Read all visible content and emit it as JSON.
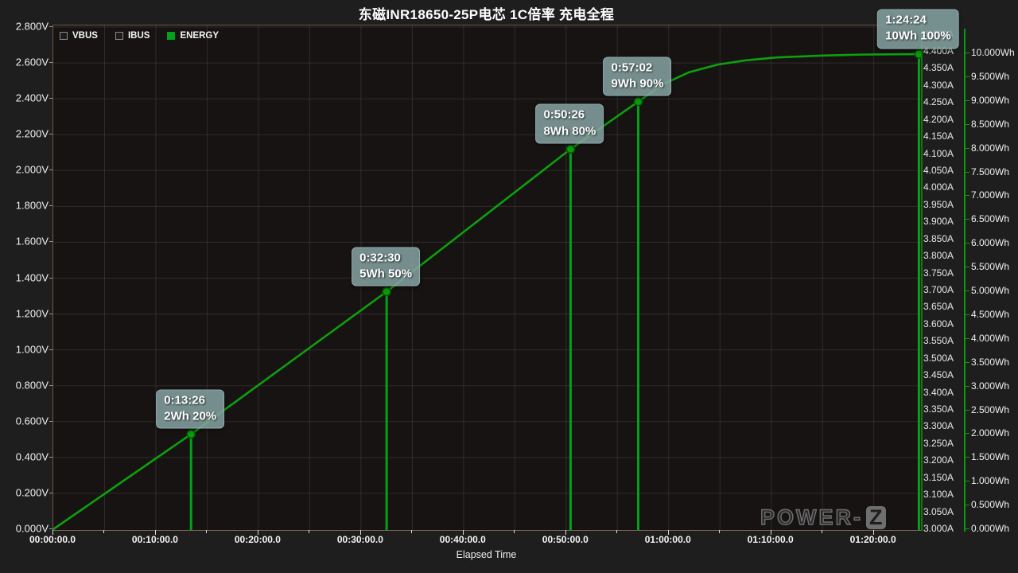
{
  "header": {
    "title": "东磁INR18650-25P电芯 1C倍率 充电全程"
  },
  "legend": {
    "items": [
      {
        "label": "VBUS",
        "checked": false,
        "swatch_color": "#1d1d1d"
      },
      {
        "label": "IBUS",
        "checked": false,
        "swatch_color": "#1d1d1d"
      },
      {
        "label": "ENERGY",
        "checked": true,
        "swatch_color": "#00a31e"
      }
    ]
  },
  "watermark": {
    "text_main": "POWER-",
    "text_z": "Z"
  },
  "colors": {
    "background": "#1f1e1e",
    "plot_background": "#171313",
    "grid": "rgba(210,210,210,0.13)",
    "plot_border": "#6f5b42",
    "energy_line": "#0ca00c",
    "marker_drop_line": "#00a318",
    "marker_dot_fill": "#0a9a0a",
    "energy_axis": "#0a9a0a",
    "annotation_bg": "rgba(134,163,163,0.85)",
    "text": "#ffffff"
  },
  "chart_data": {
    "type": "line",
    "title": "东磁INR18650-25P电芯 1C倍率 充电全程",
    "x_axis": {
      "label": "Elapsed Time",
      "ticks": [
        "00:00:00.0",
        "00:10:00.0",
        "00:20:00.0",
        "00:30:00.0",
        "00:40:00.0",
        "00:50:00.0",
        "01:00:00.0",
        "01:10:00.0",
        "01:20:00.0"
      ],
      "major_tick_minutes": 10,
      "minor_tick_minutes": 5,
      "range_minutes": [
        0,
        84.6
      ],
      "grid": true
    },
    "y_axis_voltage": {
      "unit": "V",
      "range": [
        0,
        2.8
      ],
      "step": 0.2,
      "grid": true,
      "ticks": [
        "2.800V",
        "2.600V",
        "2.400V",
        "2.200V",
        "2.000V",
        "1.800V",
        "1.600V",
        "1.400V",
        "1.200V",
        "1.000V",
        "0.800V",
        "0.600V",
        "0.400V",
        "0.200V",
        "0.000V"
      ]
    },
    "y_axis_current": {
      "unit": "A",
      "range": [
        3.0,
        4.45
      ],
      "step": 0.05,
      "ticks": [
        "4.450A",
        "4.400A",
        "4.350A",
        "4.300A",
        "4.250A",
        "4.200A",
        "4.150A",
        "4.100A",
        "4.050A",
        "4.000A",
        "3.950A",
        "3.900A",
        "3.850A",
        "3.800A",
        "3.750A",
        "3.700A",
        "3.650A",
        "3.600A",
        "3.550A",
        "3.500A",
        "3.450A",
        "3.400A",
        "3.350A",
        "3.300A",
        "3.250A",
        "3.200A",
        "3.150A",
        "3.100A",
        "3.050A",
        "3.000A"
      ]
    },
    "y_axis_energy": {
      "unit": "Wh",
      "range": [
        0,
        10
      ],
      "step": 0.5,
      "ticks": [
        "10.000Wh",
        "9.500Wh",
        "9.000Wh",
        "8.500Wh",
        "8.000Wh",
        "7.500Wh",
        "7.000Wh",
        "6.500Wh",
        "6.000Wh",
        "5.500Wh",
        "5.000Wh",
        "4.500Wh",
        "4.000Wh",
        "3.500Wh",
        "3.000Wh",
        "2.500Wh",
        "2.000Wh",
        "1.500Wh",
        "1.000Wh",
        "0.500Wh",
        "0.000Wh"
      ]
    },
    "series": [
      {
        "name": "VBUS",
        "visible": false,
        "points": []
      },
      {
        "name": "IBUS",
        "visible": false,
        "points": []
      },
      {
        "name": "ENERGY",
        "visible": true,
        "unit": "Wh",
        "points": [
          [
            0,
            0
          ],
          [
            13.43,
            2
          ],
          [
            32.5,
            5
          ],
          [
            50.43,
            8
          ],
          [
            57.03,
            9
          ],
          [
            59.5,
            9.37
          ],
          [
            62,
            9.62
          ],
          [
            64.8,
            9.78
          ],
          [
            67.5,
            9.87
          ],
          [
            70.5,
            9.93
          ],
          [
            75,
            9.97
          ],
          [
            79,
            9.99
          ],
          [
            84.4,
            10
          ]
        ]
      }
    ],
    "markers": [
      {
        "time": "0:13:26",
        "label": "2Wh 20%",
        "t_min": 13.433,
        "wh": 2
      },
      {
        "time": "0:32:30",
        "label": "5Wh 50%",
        "t_min": 32.5,
        "wh": 5
      },
      {
        "time": "0:50:26",
        "label": "8Wh 80%",
        "t_min": 50.433,
        "wh": 8
      },
      {
        "time": "0:57:02",
        "label": "9Wh 90%",
        "t_min": 57.033,
        "wh": 9
      },
      {
        "time": "1:24:24",
        "label": "10Wh 100%",
        "t_min": 84.4,
        "wh": 10
      }
    ],
    "legend_position": "top-left",
    "grid": "on"
  }
}
